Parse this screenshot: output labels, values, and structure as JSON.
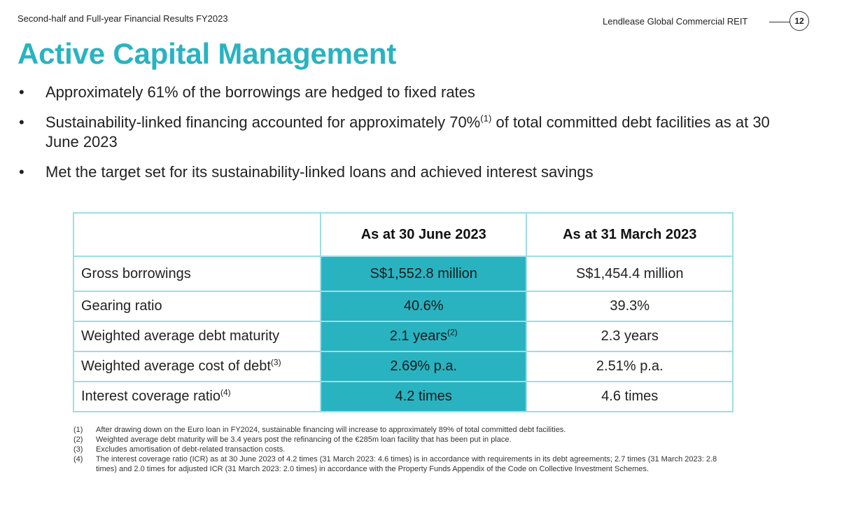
{
  "header": {
    "doc_subtitle": "Second-half and Full-year Financial Results FY2023",
    "brand": "Lendlease Global Commercial REIT",
    "page_number": "12"
  },
  "title": "Active Capital Management",
  "bullets": [
    {
      "text": "Approximately 61% of the borrowings are hedged to fixed rates"
    },
    {
      "text_before": "Sustainability-linked financing accounted for approximately 70%",
      "sup": "(1)",
      "text_after": " of total committed debt facilities as at 30 June 2023"
    },
    {
      "text": "Met the target set for its sustainability-linked loans and achieved interest savings"
    }
  ],
  "bullet_symbol": "•",
  "table": {
    "headers": [
      "As at 30 June 2023",
      "As at 31 March 2023"
    ],
    "rows": [
      {
        "label": "Gross borrowings",
        "label_sup": "",
        "jun": "S$1,552.8 million",
        "jun_sup": "",
        "mar": "S$1,454.4 million"
      },
      {
        "label": "Gearing ratio",
        "label_sup": "",
        "jun": "40.6%",
        "jun_sup": "",
        "mar": "39.3%"
      },
      {
        "label": "Weighted average debt maturity",
        "label_sup": "",
        "jun": "2.1 years",
        "jun_sup": "(2)",
        "mar": "2.3 years"
      },
      {
        "label": "Weighted average cost of debt",
        "label_sup": "(3)",
        "jun": "2.69% p.a.",
        "jun_sup": "",
        "mar": "2.51% p.a."
      },
      {
        "label": "Interest coverage ratio",
        "label_sup": "(4)",
        "jun": "4.2 times",
        "jun_sup": "",
        "mar": "4.6 times"
      }
    ]
  },
  "notes": [
    {
      "num": "(1)",
      "text": "After drawing down on the Euro loan in FY2024, sustainable financing will increase to approximately 89% of total committed debt facilities."
    },
    {
      "num": "(2)",
      "text": "Weighted average debt maturity will be 3.4 years post the refinancing of the €285m loan facility that has been put in place."
    },
    {
      "num": "(3)",
      "text": "Excludes amortisation of debt-related transaction costs."
    },
    {
      "num": "(4)",
      "text": "The interest coverage ratio (ICR) as at 30 June 2023 of 4.2 times (31 March 2023: 4.6 times) is in accordance with requirements in its debt agreements; 2.7 times (31 March 2023: 2.8 times) and 2.0 times for adjusted ICR (31 March 2023: 2.0 times) in accordance with the Property Funds Appendix of the Code on Collective Investment Schemes."
    }
  ],
  "colors": {
    "accent": "#29b3c1",
    "border": "#2bb2c0"
  }
}
